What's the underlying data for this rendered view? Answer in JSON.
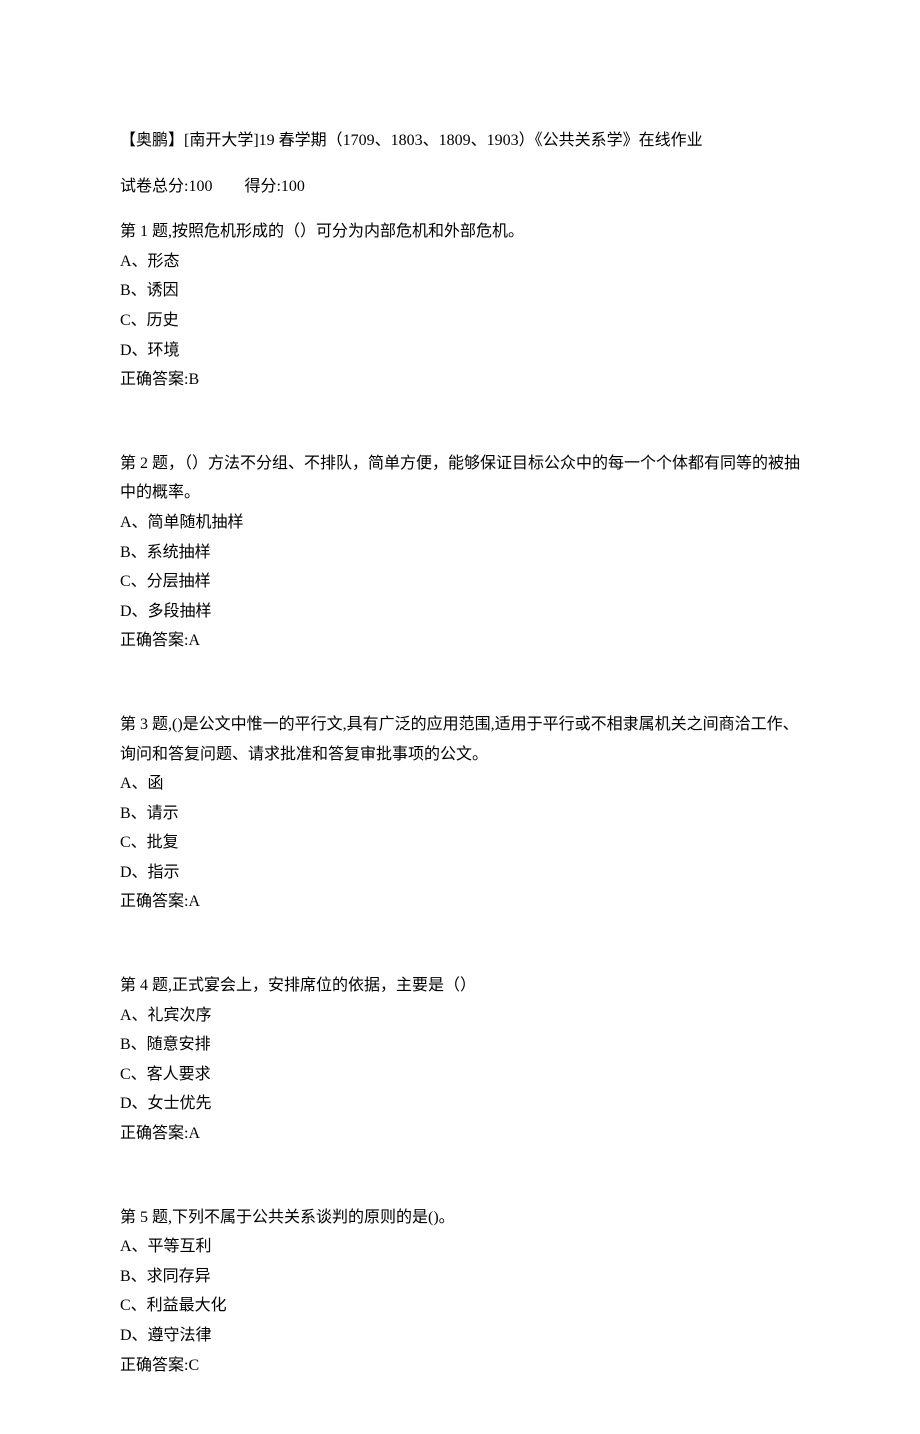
{
  "header": {
    "title_line": "【奥鹏】[南开大学]19 春学期（1709、1803、1809、1903）《公共关系学》在线作业",
    "score_total_label": "试卷总分:100",
    "score_got_label": "得分:100"
  },
  "questions": [
    {
      "stem": "第 1 题,按照危机形成的（）可分为内部危机和外部危机。",
      "options": [
        "A、形态",
        "B、诱因",
        "C、历史",
        "D、环境"
      ],
      "answer": "正确答案:B"
    },
    {
      "stem": "第 2 题，（）方法不分组、不排队，简单方便，能够保证目标公众中的每一个个体都有同等的被抽中的概率。",
      "options": [
        "A、简单随机抽样",
        "B、系统抽样",
        "C、分层抽样",
        "D、多段抽样"
      ],
      "answer": "正确答案:A"
    },
    {
      "stem": "第 3 题,()是公文中惟一的平行文,具有广泛的应用范围,适用于平行或不相隶属机关之间商洽工作、询问和答复问题、请求批准和答复审批事项的公文。",
      "options": [
        "A、函",
        "B、请示",
        "C、批复",
        "D、指示"
      ],
      "answer": "正确答案:A"
    },
    {
      "stem": "第 4 题,正式宴会上，安排席位的依据，主要是（）",
      "options": [
        "A、礼宾次序",
        "B、随意安排",
        "C、客人要求",
        "D、女士优先"
      ],
      "answer": "正确答案:A"
    },
    {
      "stem": "第 5 题,下列不属于公共关系谈判的原则的是()。",
      "options": [
        "A、平等互利",
        "B、求同存异",
        "C、利益最大化",
        "D、遵守法律"
      ],
      "answer": "正确答案:C"
    }
  ]
}
